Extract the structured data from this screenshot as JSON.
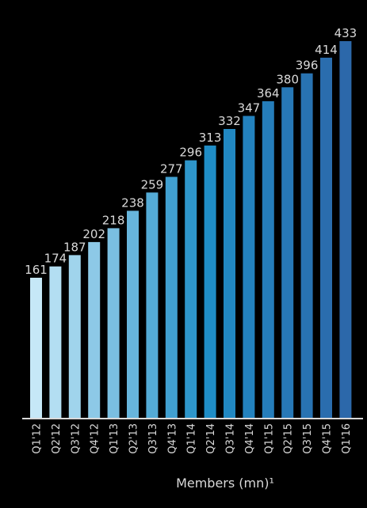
{
  "chart_data": {
    "type": "bar",
    "categories": [
      "Q1'12",
      "Q2'12",
      "Q3'12",
      "Q4'12",
      "Q1'13",
      "Q2'13",
      "Q3'13",
      "Q4'13",
      "Q1'14",
      "Q2'14",
      "Q3'14",
      "Q4'14",
      "Q1'15",
      "Q2'15",
      "Q3'15",
      "Q4'15",
      "Q1'16"
    ],
    "values": [
      161,
      174,
      187,
      202,
      218,
      238,
      259,
      277,
      296,
      313,
      332,
      347,
      364,
      380,
      396,
      414,
      433
    ],
    "title": "",
    "xlabel": "Members (mn)¹",
    "ylabel": "",
    "ylim": [
      0,
      433
    ],
    "grid": false,
    "colors": {
      "background": "#000000",
      "bar_start": "#c6e8f7",
      "bar_mid": "#1f8ec7",
      "bar_end": "#2c68aa",
      "text": "#d9d9d9",
      "axis": "#d9d9d9"
    }
  }
}
